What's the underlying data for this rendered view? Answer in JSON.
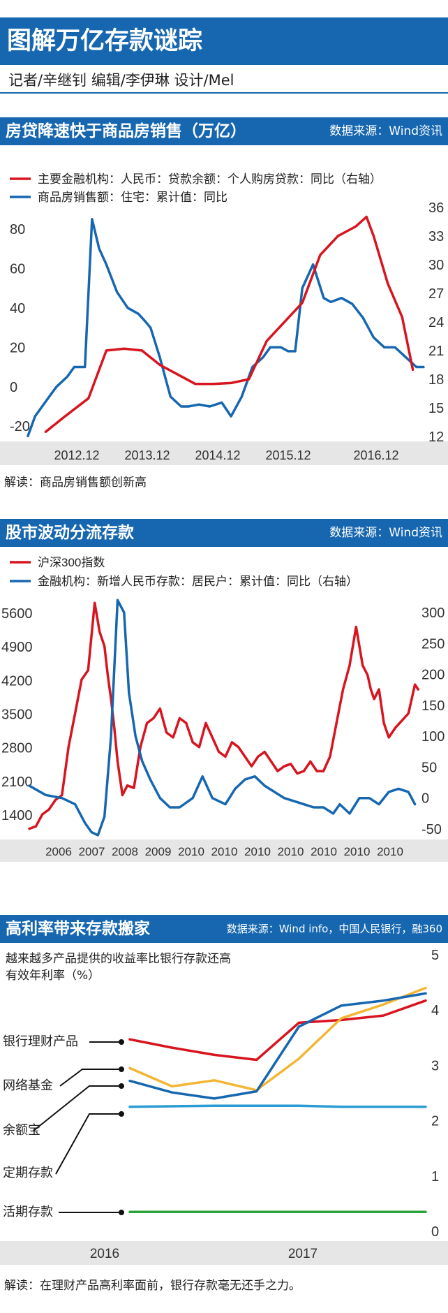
{
  "header": {
    "title": "图解万亿存款谜踪",
    "credits": "记者/辛继钊  编辑/李伊琳  设计/Mel"
  },
  "colors": {
    "blue": "#1667b0",
    "red": "#d7141f",
    "yellow": "#f3b634",
    "lightblue": "#2a9bd3",
    "green": "#2ba33b"
  },
  "section1": {
    "title": "房贷降速快于商品房销售（万亿）",
    "source": "数据来源：Wind资讯",
    "note": "解读：商品房销售额创新高"
  },
  "section2": {
    "title": "股市波动分流存款",
    "source": "数据来源：Wind资讯"
  },
  "section3": {
    "title": "高利率带来存款搬家",
    "source": "数据来源：Wind info，中国人民银行，融360",
    "subtitle1": "越来越多产品提供的收益率比银行存款还高",
    "subtitle2": "有效年利率（%）",
    "note": "解读：在理财产品高利率面前，银行存款毫无还手之力。"
  },
  "chart_data": [
    {
      "type": "line",
      "title": "房贷降速快于商品房销售（万亿）",
      "legend": [
        "主要金融机构：人民币：贷款余额：个人购房贷款：同比（右轴）",
        "商品房销售额：住宅：累计值：同比"
      ],
      "x_tick_labels": [
        "2012.12",
        "2013.12",
        "2014.12",
        "2015.12",
        "2016.12"
      ],
      "x_range": [
        2012.2,
        2017.8
      ],
      "y_left": {
        "range": [
          -27,
          92
        ],
        "ticks": [
          "80",
          "60",
          "40",
          "20",
          "0",
          "-20"
        ],
        "tick_values": [
          80,
          60,
          40,
          20,
          0,
          -20
        ]
      },
      "y_right": {
        "range": [
          12,
          36.5
        ],
        "ticks": [
          "36",
          "33",
          "30",
          "27",
          "24",
          "21",
          "18",
          "15",
          "12"
        ],
        "tick_values": [
          36,
          33,
          30,
          27,
          24,
          21,
          18,
          15,
          12
        ]
      },
      "series": [
        {
          "name": "商品房销售额：住宅：累计值：同比",
          "axis": "left",
          "color": "blue",
          "x": [
            2012.2,
            2012.3,
            2012.5,
            2012.6,
            2012.75,
            2012.85,
            2013.0,
            2013.1,
            2013.2,
            2013.3,
            2013.45,
            2013.6,
            2013.75,
            2013.85,
            2013.92,
            2014.05,
            2014.2,
            2014.35,
            2014.45,
            2014.6,
            2014.75,
            2014.92,
            2015.05,
            2015.2,
            2015.35,
            2015.5,
            2015.6,
            2015.75,
            2015.85,
            2015.95,
            2016.05,
            2016.2,
            2016.35,
            2016.45,
            2016.6,
            2016.75,
            2016.9,
            2017.05,
            2017.2,
            2017.35,
            2017.5,
            2017.65,
            2017.75
          ],
          "y": [
            -25,
            -15,
            -5,
            0,
            5,
            10,
            10,
            85,
            70,
            62,
            48,
            40,
            37,
            33,
            30,
            15,
            -5,
            -10,
            -10,
            -9,
            -10,
            -8,
            -15,
            -5,
            10,
            15,
            20,
            20,
            18,
            18,
            50,
            62,
            45,
            43,
            45,
            42,
            35,
            25,
            20,
            20,
            15,
            10,
            10
          ]
        },
        {
          "name": "主要金融机构：人民币：贷款余额：个人购房贷款：同比（右轴）",
          "axis": "right",
          "color": "red",
          "x": [
            2012.45,
            2012.7,
            2013.05,
            2013.3,
            2013.55,
            2013.8,
            2014.05,
            2014.3,
            2014.55,
            2014.8,
            2015.05,
            2015.3,
            2015.55,
            2015.8,
            2016.05,
            2016.3,
            2016.55,
            2016.8,
            2016.95,
            2017.05,
            2017.25,
            2017.45,
            2017.6
          ],
          "y": [
            12.5,
            14.0,
            16.0,
            21.0,
            21.2,
            21.0,
            19.5,
            18.5,
            17.5,
            17.5,
            17.6,
            18.0,
            22.0,
            24.0,
            26.0,
            31.0,
            33.0,
            34.0,
            35.0,
            33.0,
            28.0,
            24.5,
            19.0
          ]
        }
      ]
    },
    {
      "type": "line",
      "title": "股市波动分流存款",
      "legend": [
        "沪深300指数",
        "金融机构：新增人民币存款：居民户：累计值：同比（右轴）"
      ],
      "x_tick_labels": [
        "2006",
        "2007",
        "2008",
        "2009",
        "2010",
        "2010",
        "2010",
        "2010",
        "2010",
        "2010",
        "2010"
      ],
      "x_range": [
        2005.0,
        2017.0
      ],
      "y_left": {
        "range": [
          1300,
          6000
        ],
        "ticks": [
          "5600",
          "4900",
          "4200",
          "3500",
          "2800",
          "2100",
          "1400"
        ],
        "tick_values": [
          5600,
          4900,
          4200,
          3500,
          2800,
          2100,
          1400
        ]
      },
      "y_right": {
        "range": [
          -60,
          330
        ],
        "ticks": [
          "300",
          "250",
          "200",
          "150",
          "100",
          "50",
          "0",
          "-50"
        ],
        "tick_values": [
          300,
          250,
          200,
          150,
          100,
          50,
          0,
          -50
        ]
      },
      "series": [
        {
          "name": "沪深300指数",
          "axis": "left",
          "color": "red",
          "x": [
            2005.0,
            2005.2,
            2005.4,
            2005.6,
            2005.8,
            2006.0,
            2006.2,
            2006.4,
            2006.6,
            2006.8,
            2007.0,
            2007.15,
            2007.3,
            2007.4,
            2007.5,
            2007.6,
            2007.7,
            2007.85,
            2008.0,
            2008.2,
            2008.4,
            2008.6,
            2008.8,
            2009.0,
            2009.2,
            2009.4,
            2009.6,
            2009.8,
            2010.0,
            2010.2,
            2010.4,
            2010.6,
            2010.8,
            2011.0,
            2011.2,
            2011.4,
            2011.6,
            2011.8,
            2012.0,
            2012.2,
            2012.4,
            2012.6,
            2012.8,
            2013.0,
            2013.2,
            2013.4,
            2013.6,
            2013.8,
            2014.0,
            2014.2,
            2014.4,
            2014.6,
            2014.8,
            2015.0,
            2015.2,
            2015.35,
            2015.45,
            2015.55,
            2015.7,
            2015.85,
            2016.0,
            2016.2,
            2016.4,
            2016.6,
            2016.8,
            2016.9
          ],
          "y": [
            1100,
            1150,
            1400,
            1500,
            1700,
            1800,
            2800,
            3500,
            4200,
            4400,
            5800,
            5200,
            4900,
            4300,
            3800,
            3200,
            2500,
            1800,
            2000,
            1950,
            2800,
            3300,
            3400,
            3600,
            3100,
            3000,
            3400,
            3300,
            2900,
            2800,
            3300,
            3000,
            2700,
            2600,
            2900,
            2800,
            2600,
            2400,
            2600,
            2700,
            2500,
            2300,
            2400,
            2450,
            2250,
            2300,
            2500,
            2300,
            2300,
            2600,
            3300,
            4000,
            4500,
            5300,
            4500,
            4300,
            4000,
            3800,
            4000,
            3300,
            3000,
            3200,
            3350,
            3500,
            4100,
            4000
          ]
        },
        {
          "name": "金融机构：新增人民币存款：居民户：累计值：同比（右轴）",
          "axis": "right",
          "color": "blue",
          "x": [
            2005.0,
            2005.5,
            2006.0,
            2006.4,
            2006.7,
            2006.9,
            2007.1,
            2007.3,
            2007.5,
            2007.7,
            2007.9,
            2008.05,
            2008.25,
            2008.45,
            2008.7,
            2009.0,
            2009.3,
            2009.6,
            2010.0,
            2010.3,
            2010.6,
            2011.0,
            2011.3,
            2011.6,
            2011.9,
            2012.2,
            2012.5,
            2012.8,
            2013.1,
            2013.4,
            2013.7,
            2014.0,
            2014.3,
            2014.5,
            2014.8,
            2015.1,
            2015.4,
            2015.7,
            2016.0,
            2016.3,
            2016.6,
            2016.8
          ],
          "y": [
            20,
            5,
            0,
            -10,
            -40,
            -55,
            -60,
            -30,
            100,
            320,
            300,
            170,
            100,
            60,
            30,
            0,
            -15,
            -15,
            0,
            35,
            0,
            -10,
            15,
            30,
            35,
            20,
            10,
            0,
            -5,
            -10,
            -15,
            -15,
            -25,
            -10,
            -25,
            0,
            0,
            -10,
            10,
            15,
            10,
            -10
          ]
        }
      ]
    },
    {
      "type": "line",
      "title": "高利率带来存款搬家",
      "x_tick_labels": [
        "2016",
        "2017"
      ],
      "x_range": [
        0,
        8
      ],
      "y_right": {
        "range": [
          0,
          5
        ],
        "ticks": [
          "5",
          "4",
          "3",
          "2",
          "1",
          "0"
        ],
        "tick_values": [
          5,
          4,
          3,
          2,
          1,
          0
        ]
      },
      "ylabel": "有效年利率（%）",
      "series": [
        {
          "name": "银行理财产品",
          "color": "red",
          "x": [
            0,
            1,
            2,
            3,
            4,
            5,
            6,
            7
          ],
          "y": [
            3.47,
            3.32,
            3.19,
            3.1,
            3.77,
            3.82,
            3.9,
            4.17
          ]
        },
        {
          "name": "网络基金",
          "color": "yellow",
          "x": [
            0,
            1,
            2,
            3,
            4,
            5,
            6,
            7
          ],
          "y": [
            2.95,
            2.62,
            2.73,
            2.55,
            3.12,
            3.85,
            4.1,
            4.4
          ]
        },
        {
          "name": "余额宝",
          "color": "blue",
          "x": [
            0,
            1,
            2,
            3,
            4,
            5,
            6,
            7
          ],
          "y": [
            2.72,
            2.51,
            2.4,
            2.53,
            3.7,
            4.08,
            4.17,
            4.3
          ]
        },
        {
          "name": "定期存款",
          "color": "lightblue",
          "x": [
            0,
            1,
            2,
            3,
            4,
            5,
            6,
            7
          ],
          "y": [
            2.25,
            2.26,
            2.27,
            2.27,
            2.27,
            2.25,
            2.25,
            2.25
          ]
        },
        {
          "name": "活期存款",
          "color": "green",
          "x": [
            0,
            1,
            2,
            3,
            4,
            5,
            6,
            7
          ],
          "y": [
            0.35,
            0.35,
            0.35,
            0.35,
            0.35,
            0.35,
            0.35,
            0.35
          ]
        }
      ]
    }
  ]
}
